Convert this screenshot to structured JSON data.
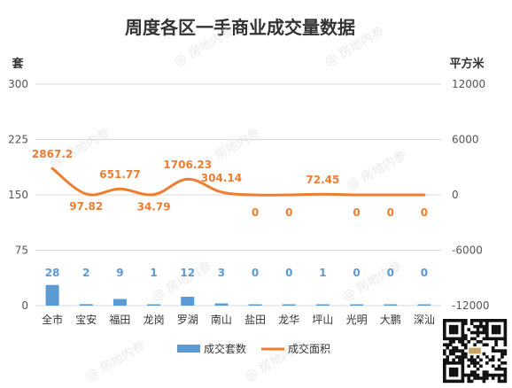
{
  "chart_data": {
    "type": "bar",
    "title": "周度各区一手商业成交量数据",
    "categories": [
      "全市",
      "宝安",
      "福田",
      "龙岗",
      "罗湖",
      "南山",
      "盐田",
      "龙华",
      "坪山",
      "光明",
      "大鹏",
      "深汕"
    ],
    "series": [
      {
        "name": "成交套数",
        "type": "bar",
        "axis": "left",
        "color": "#5b9bd5",
        "values": [
          28,
          2,
          9,
          1,
          12,
          3,
          0,
          0,
          1,
          0,
          0,
          0
        ]
      },
      {
        "name": "成交面积",
        "type": "line",
        "axis": "right",
        "color": "#ed7d31",
        "values": [
          2867.2,
          97.82,
          651.77,
          34.79,
          1706.23,
          304.14,
          0,
          0,
          72.45,
          0,
          0,
          0
        ]
      }
    ],
    "left_axis": {
      "label": "套",
      "ylim": [
        0,
        300
      ],
      "ticks": [
        0,
        75,
        150,
        225,
        300
      ]
    },
    "right_axis": {
      "label": "平方米",
      "ylim": [
        -12000,
        12000
      ],
      "ticks": [
        -12000,
        -6000,
        0,
        6000,
        12000
      ]
    },
    "legend_position": "bottom",
    "grid": true
  },
  "watermark": "@ 房地内参"
}
